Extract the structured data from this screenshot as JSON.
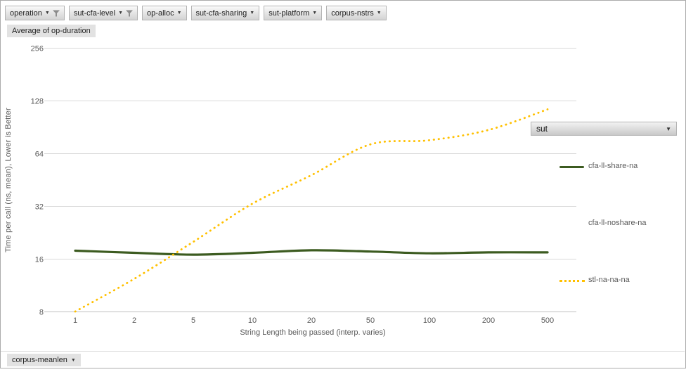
{
  "colors": {
    "series_green": "#3c5b20",
    "series_gold": "#ffc000",
    "grid": "#d9d9d9",
    "axis_line": "#bfbfbf",
    "axis_text": "#595959"
  },
  "field_buttons": [
    {
      "label": "operation",
      "filtered": true
    },
    {
      "label": "sut-cfa-level",
      "filtered": true
    },
    {
      "label": "op-alloc",
      "filtered": false
    },
    {
      "label": "sut-cfa-sharing",
      "filtered": false
    },
    {
      "label": "sut-platform",
      "filtered": false
    },
    {
      "label": "corpus-nstrs",
      "filtered": false
    }
  ],
  "value_button": {
    "label": "Average of op-duration"
  },
  "axis_field_button": {
    "label": "corpus-meanlen"
  },
  "legend": {
    "field_label": "sut",
    "entries": [
      {
        "label": "cfa-ll-share-na",
        "swatch": "solid-green"
      },
      {
        "label": "cfa-ll-noshare-na",
        "swatch": "none"
      },
      {
        "label": "stl-na-na-na",
        "swatch": "dotted-gold"
      }
    ]
  },
  "chart_data": {
    "type": "line",
    "x": [
      1,
      2,
      5,
      10,
      20,
      50,
      100,
      200,
      500
    ],
    "series": [
      {
        "name": "cfa-ll-share-na",
        "style": "solid",
        "color": "#3c5b20",
        "values": [
          17.8,
          17.3,
          16.9,
          17.3,
          17.9,
          17.6,
          17.2,
          17.4,
          17.4
        ]
      },
      {
        "name": "cfa-ll-noshare-na",
        "style": "none",
        "color": null,
        "values": null
      },
      {
        "name": "stl-na-na-na",
        "style": "dotted",
        "color": "#ffc000",
        "values": [
          8,
          12.3,
          20,
          33,
          48,
          72,
          76,
          87,
          114
        ]
      }
    ],
    "title": "",
    "xlabel": "String Length  being passed (interp. varies)",
    "ylabel": "Time per call (ns, mean),  Lower  is Better",
    "y_scale": "log2",
    "y_ticks": [
      256,
      128,
      64,
      32,
      16,
      8
    ],
    "ylim": [
      8,
      256
    ],
    "grid": true,
    "legend_position": "right"
  }
}
